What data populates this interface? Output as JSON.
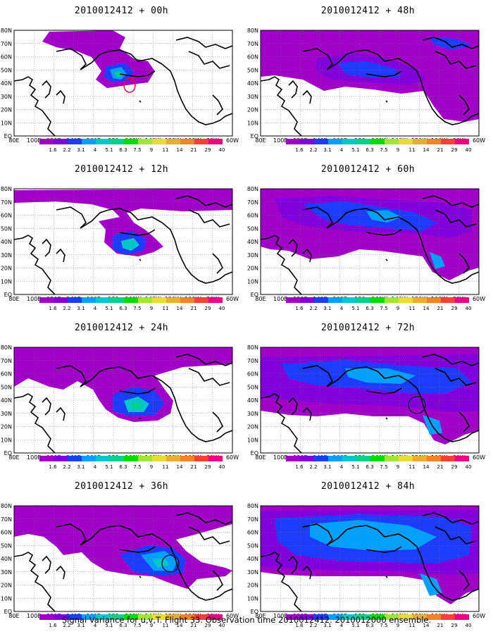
{
  "panels": [
    {
      "title": "2010012412 + 00h",
      "level": 0,
      "target": "red"
    },
    {
      "title": "2010012412 + 48h",
      "level": 4,
      "target": "none"
    },
    {
      "title": "2010012412 + 12h",
      "level": 1,
      "target": "none"
    },
    {
      "title": "2010012412 + 60h",
      "level": 5,
      "target": "none"
    },
    {
      "title": "2010012412 + 24h",
      "level": 2,
      "target": "none"
    },
    {
      "title": "2010012412 + 72h",
      "level": 6,
      "target": "dark"
    },
    {
      "title": "2010012412 + 36h",
      "level": 3,
      "target": "dark"
    },
    {
      "title": "2010012412 + 84h",
      "level": 7,
      "target": "none"
    }
  ],
  "lat_labels": [
    "80N",
    "70N",
    "60N",
    "50N",
    "40N",
    "30N",
    "20N",
    "10N",
    "EQ"
  ],
  "lon_labels": [
    "80E",
    "100E",
    "120E",
    "140E",
    "160E",
    "180",
    "160W",
    "140W",
    "120W",
    "100W",
    "80W",
    "60W"
  ],
  "colorbar": {
    "labels": [
      "1.6",
      "2.2",
      "3.1",
      "4",
      "5.1",
      "6.3",
      "7.5",
      "9",
      "11",
      "14",
      "21",
      "29",
      "40"
    ],
    "colors": [
      "#a000c8",
      "#8200dc",
      "#1e3cff",
      "#00a0ff",
      "#00c8c8",
      "#00d28c",
      "#00dc00",
      "#a0e632",
      "#e6dc32",
      "#e6af2d",
      "#f08228",
      "#fa3c3c",
      "#f00082"
    ]
  },
  "footer": "Signal Variance for u,v,T. Flight 33. Observation time 2010012412. 2010012000 ensemble."
}
